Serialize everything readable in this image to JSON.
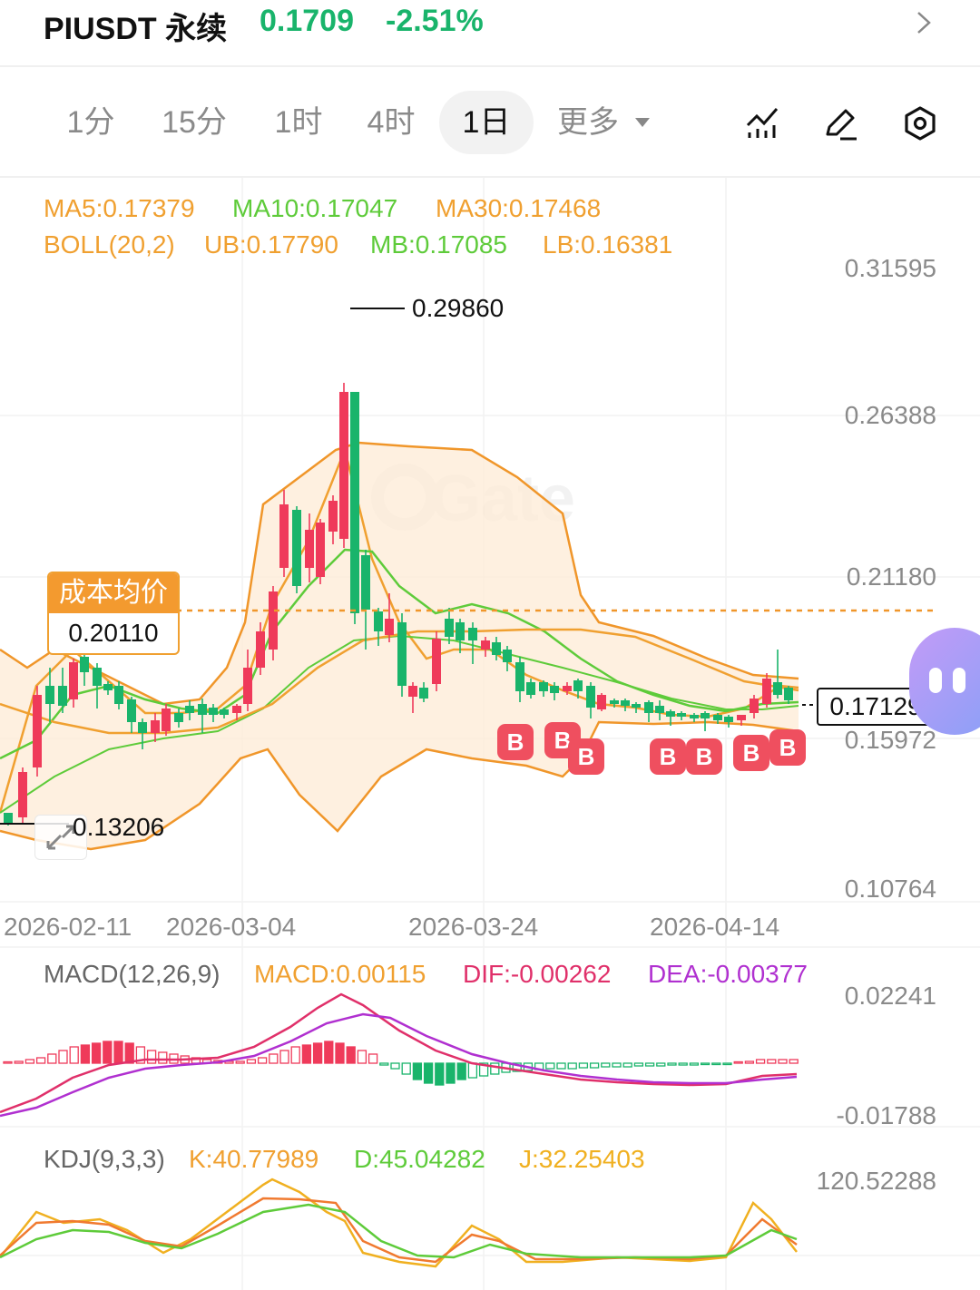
{
  "header": {
    "symbol": "PIUSDT 永续",
    "price": "0.1709",
    "change": "-2.51%"
  },
  "toolbar": {
    "timeframes": [
      "1分",
      "15分",
      "1时",
      "4时",
      "1日",
      "更多"
    ],
    "active": "1日",
    "icons": [
      "indicator-icon",
      "draw-pen-icon",
      "settings-hex-icon"
    ]
  },
  "main_legend": {
    "ma5": "MA5:0.17379",
    "ma10": "MA10:0.17047",
    "ma30": "MA30:0.17468",
    "boll": "BOLL(20,2)",
    "ub": "UB:0.17790",
    "mb": "MB:0.17085",
    "lb": "LB:0.16381"
  },
  "price_axis": [
    "0.31595",
    "0.26388",
    "0.21180",
    "0.15972",
    "0.10764"
  ],
  "dates": [
    "2026-02-11",
    "2026-03-04",
    "2026-03-24",
    "2026-04-14"
  ],
  "markers": {
    "high": "0.29860",
    "low": "0.13206",
    "cost_title": "成本均价",
    "cost_value": "0.20110",
    "current": "0.17129",
    "buy_label": "B"
  },
  "macd": {
    "title": "MACD(12,26,9)",
    "macd": "MACD:0.00115",
    "dif": "DIF:-0.00262",
    "dea": "DEA:-0.00377",
    "axis": [
      "0.02241",
      "-0.01788"
    ]
  },
  "kdj": {
    "title": "KDJ(9,3,3)",
    "k": "K:40.77989",
    "d": "D:45.04282",
    "j": "J:32.25403",
    "axis": [
      "120.52288"
    ]
  },
  "colors": {
    "up": "#19b46b",
    "down": "#ef3a5a",
    "ma5": "#f0a030",
    "ma10": "#5ecb3a",
    "boll": "#f08a20",
    "boll_fill": "#fdebd6"
  },
  "watermark": "Gate"
}
